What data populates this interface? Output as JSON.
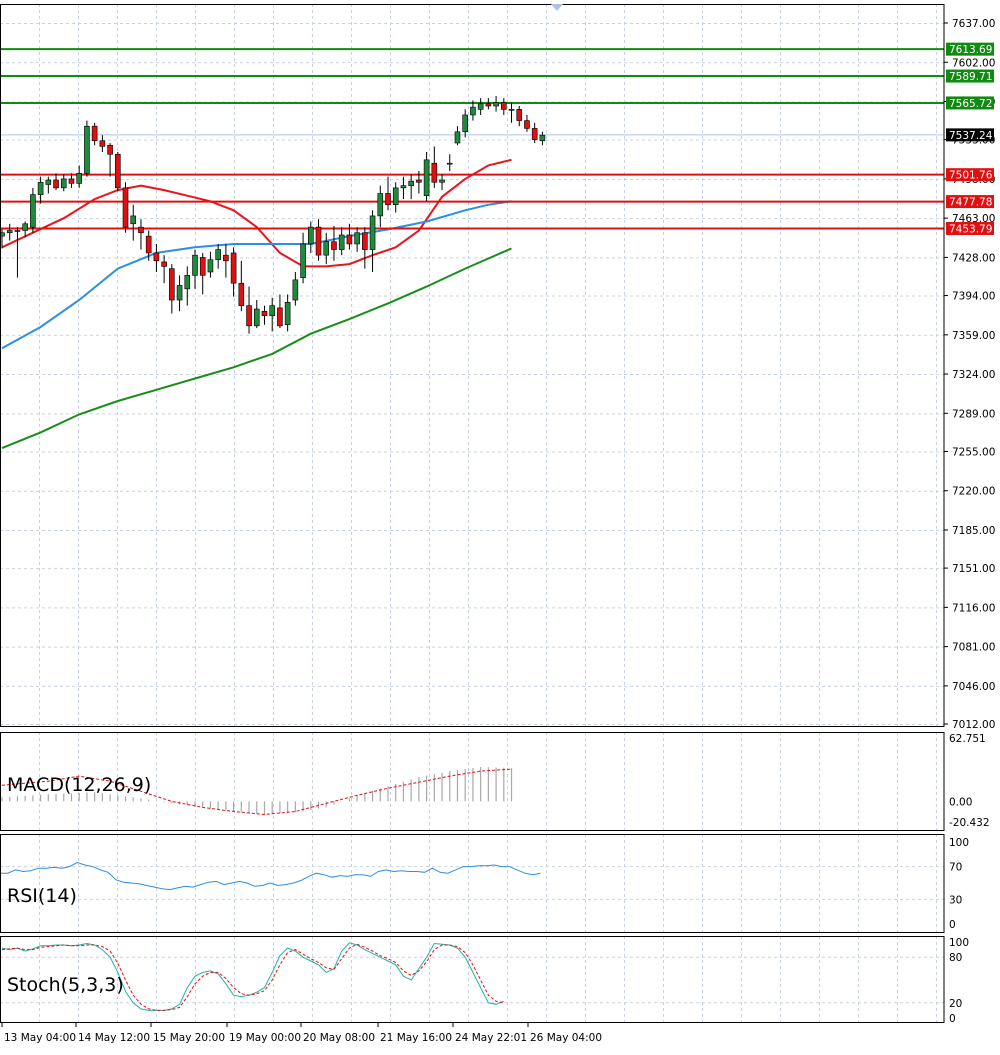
{
  "platform_colors": {
    "background": "#ffffff",
    "grid": "#c9d2e0",
    "frame": "#000000",
    "bull_candle": "#1f8a3b",
    "bear_candle": "#e01010",
    "wick": "#000000",
    "ma_fast": "#e8141c",
    "ma_mid": "#2d8ee6",
    "ma_slow": "#1a8c1a",
    "resistance": "#118a11",
    "support": "#e01010",
    "price_line": "#a9c6e8",
    "macd_histogram": "#a8a8a8",
    "macd_signal": "#e01010",
    "rsi_line": "#2d8ee6",
    "stoch_main": "#20b2aa",
    "stoch_signal": "#e01010",
    "label_text": "#ffffff",
    "current_price_bg": "#000000"
  },
  "x_axis_labels": [
    "13 May 04:00",
    "14 May 12:00",
    "15 May 20:00",
    "19 May 00:00",
    "20 May 08:00",
    "21 May 16:00",
    "24 May 22:01",
    "26 May 04:00"
  ],
  "chart_data": [
    {
      "type": "candlestick",
      "pane": "price",
      "title": "",
      "ylim": [
        7012.0,
        7637.0
      ],
      "y_tick_labels": [
        "7637.00",
        "7602.00",
        "7567.00",
        "7533.00",
        "7498.00",
        "7463.00",
        "7428.00",
        "7394.00",
        "7359.00",
        "7324.00",
        "7289.00",
        "7255.00",
        "7220.00",
        "7185.00",
        "7151.00",
        "7116.00",
        "7081.00",
        "7046.00",
        "7012.00"
      ],
      "grid": true,
      "candles": [
        {
          "o": 7447,
          "h": 7453,
          "l": 7436,
          "c": 7450
        },
        {
          "o": 7450,
          "h": 7458,
          "l": 7443,
          "c": 7452
        },
        {
          "o": 7452,
          "h": 7455,
          "l": 7410,
          "c": 7452
        },
        {
          "o": 7452,
          "h": 7460,
          "l": 7446,
          "c": 7458
        },
        {
          "o": 7455,
          "h": 7490,
          "l": 7450,
          "c": 7484
        },
        {
          "o": 7484,
          "h": 7500,
          "l": 7476,
          "c": 7495
        },
        {
          "o": 7493,
          "h": 7500,
          "l": 7485,
          "c": 7497
        },
        {
          "o": 7497,
          "h": 7503,
          "l": 7488,
          "c": 7490
        },
        {
          "o": 7490,
          "h": 7502,
          "l": 7487,
          "c": 7498
        },
        {
          "o": 7498,
          "h": 7503,
          "l": 7490,
          "c": 7494
        },
        {
          "o": 7494,
          "h": 7510,
          "l": 7490,
          "c": 7503
        },
        {
          "o": 7503,
          "h": 7550,
          "l": 7500,
          "c": 7545
        },
        {
          "o": 7545,
          "h": 7548,
          "l": 7528,
          "c": 7532
        },
        {
          "o": 7532,
          "h": 7537,
          "l": 7522,
          "c": 7527
        },
        {
          "o": 7528,
          "h": 7530,
          "l": 7500,
          "c": 7520
        },
        {
          "o": 7520,
          "h": 7522,
          "l": 7487,
          "c": 7490
        },
        {
          "o": 7490,
          "h": 7495,
          "l": 7450,
          "c": 7455
        },
        {
          "o": 7458,
          "h": 7475,
          "l": 7443,
          "c": 7465
        },
        {
          "o": 7455,
          "h": 7462,
          "l": 7435,
          "c": 7450
        },
        {
          "o": 7447,
          "h": 7452,
          "l": 7425,
          "c": 7432
        },
        {
          "o": 7432,
          "h": 7440,
          "l": 7415,
          "c": 7425
        },
        {
          "o": 7424,
          "h": 7430,
          "l": 7405,
          "c": 7420
        },
        {
          "o": 7418,
          "h": 7422,
          "l": 7378,
          "c": 7390
        },
        {
          "o": 7390,
          "h": 7412,
          "l": 7380,
          "c": 7403
        },
        {
          "o": 7400,
          "h": 7420,
          "l": 7385,
          "c": 7412
        },
        {
          "o": 7412,
          "h": 7435,
          "l": 7400,
          "c": 7430
        },
        {
          "o": 7428,
          "h": 7432,
          "l": 7395,
          "c": 7412
        },
        {
          "o": 7415,
          "h": 7433,
          "l": 7410,
          "c": 7426
        },
        {
          "o": 7426,
          "h": 7440,
          "l": 7418,
          "c": 7435
        },
        {
          "o": 7430,
          "h": 7440,
          "l": 7410,
          "c": 7425
        },
        {
          "o": 7432,
          "h": 7437,
          "l": 7393,
          "c": 7405
        },
        {
          "o": 7405,
          "h": 7425,
          "l": 7380,
          "c": 7385
        },
        {
          "o": 7385,
          "h": 7402,
          "l": 7360,
          "c": 7367
        },
        {
          "o": 7367,
          "h": 7390,
          "l": 7365,
          "c": 7382
        },
        {
          "o": 7380,
          "h": 7385,
          "l": 7368,
          "c": 7376
        },
        {
          "o": 7376,
          "h": 7392,
          "l": 7362,
          "c": 7385
        },
        {
          "o": 7383,
          "h": 7395,
          "l": 7365,
          "c": 7367
        },
        {
          "o": 7368,
          "h": 7395,
          "l": 7362,
          "c": 7388
        },
        {
          "o": 7390,
          "h": 7415,
          "l": 7385,
          "c": 7408
        },
        {
          "o": 7410,
          "h": 7450,
          "l": 7405,
          "c": 7440
        },
        {
          "o": 7440,
          "h": 7460,
          "l": 7432,
          "c": 7455
        },
        {
          "o": 7455,
          "h": 7462,
          "l": 7425,
          "c": 7430
        },
        {
          "o": 7430,
          "h": 7450,
          "l": 7422,
          "c": 7442
        },
        {
          "o": 7442,
          "h": 7456,
          "l": 7425,
          "c": 7435
        },
        {
          "o": 7435,
          "h": 7455,
          "l": 7430,
          "c": 7448
        },
        {
          "o": 7448,
          "h": 7458,
          "l": 7435,
          "c": 7440
        },
        {
          "o": 7440,
          "h": 7455,
          "l": 7433,
          "c": 7450
        },
        {
          "o": 7450,
          "h": 7455,
          "l": 7418,
          "c": 7435
        },
        {
          "o": 7435,
          "h": 7470,
          "l": 7415,
          "c": 7465
        },
        {
          "o": 7465,
          "h": 7492,
          "l": 7455,
          "c": 7485
        },
        {
          "o": 7485,
          "h": 7500,
          "l": 7470,
          "c": 7475
        },
        {
          "o": 7475,
          "h": 7495,
          "l": 7468,
          "c": 7490
        },
        {
          "o": 7490,
          "h": 7500,
          "l": 7480,
          "c": 7492
        },
        {
          "o": 7492,
          "h": 7502,
          "l": 7480,
          "c": 7496
        },
        {
          "o": 7497,
          "h": 7505,
          "l": 7485,
          "c": 7495
        },
        {
          "o": 7483,
          "h": 7522,
          "l": 7478,
          "c": 7515
        },
        {
          "o": 7512,
          "h": 7527,
          "l": 7490,
          "c": 7495
        },
        {
          "o": 7495,
          "h": 7502,
          "l": 7488,
          "c": 7497
        },
        {
          "o": 7512,
          "h": 7520,
          "l": 7505,
          "c": 7512
        },
        {
          "o": 7530,
          "h": 7545,
          "l": 7528,
          "c": 7540
        },
        {
          "o": 7540,
          "h": 7560,
          "l": 7535,
          "c": 7555
        },
        {
          "o": 7555,
          "h": 7568,
          "l": 7550,
          "c": 7562
        },
        {
          "o": 7560,
          "h": 7570,
          "l": 7555,
          "c": 7565
        },
        {
          "o": 7565,
          "h": 7570,
          "l": 7560,
          "c": 7563
        },
        {
          "o": 7563,
          "h": 7572,
          "l": 7558,
          "c": 7566
        },
        {
          "o": 7566,
          "h": 7570,
          "l": 7555,
          "c": 7560
        },
        {
          "o": 7560,
          "h": 7566,
          "l": 7548,
          "c": 7560
        },
        {
          "o": 7560,
          "h": 7563,
          "l": 7545,
          "c": 7550
        },
        {
          "o": 7550,
          "h": 7555,
          "l": 7540,
          "c": 7543
        },
        {
          "o": 7543,
          "h": 7548,
          "l": 7530,
          "c": 7533
        },
        {
          "o": 7532,
          "h": 7540,
          "l": 7528,
          "c": 7537
        }
      ],
      "moving_averages": [
        {
          "color_key": "ma_fast",
          "points": [
            [
              0,
              7437
            ],
            [
              4,
              7450
            ],
            [
              8,
              7463
            ],
            [
              12,
              7480
            ],
            [
              15,
              7488
            ],
            [
              18,
              7492
            ],
            [
              21,
              7488
            ],
            [
              24,
              7483
            ],
            [
              27,
              7478
            ],
            [
              30,
              7470
            ],
            [
              33,
              7455
            ],
            [
              36,
              7432
            ],
            [
              39,
              7420
            ],
            [
              42,
              7420
            ],
            [
              45,
              7422
            ],
            [
              48,
              7430
            ],
            [
              51,
              7437
            ],
            [
              54,
              7452
            ],
            [
              57,
              7482
            ],
            [
              60,
              7498
            ],
            [
              63,
              7510
            ],
            [
              66,
              7515
            ]
          ]
        },
        {
          "color_key": "ma_mid",
          "points": [
            [
              0,
              7347
            ],
            [
              5,
              7366
            ],
            [
              10,
              7390
            ],
            [
              15,
              7418
            ],
            [
              20,
              7432
            ],
            [
              25,
              7437
            ],
            [
              30,
              7440
            ],
            [
              35,
              7440
            ],
            [
              40,
              7440
            ],
            [
              45,
              7447
            ],
            [
              50,
              7453
            ],
            [
              55,
              7460
            ],
            [
              60,
              7470
            ],
            [
              63,
              7475
            ],
            [
              66,
              7478
            ]
          ]
        },
        {
          "color_key": "ma_slow",
          "points": [
            [
              0,
              7258
            ],
            [
              5,
              7272
            ],
            [
              10,
              7288
            ],
            [
              15,
              7300
            ],
            [
              20,
              7310
            ],
            [
              25,
              7320
            ],
            [
              30,
              7330
            ],
            [
              35,
              7342
            ],
            [
              40,
              7360
            ],
            [
              45,
              7373
            ],
            [
              50,
              7387
            ],
            [
              55,
              7402
            ],
            [
              60,
              7418
            ],
            [
              63,
              7427
            ],
            [
              66,
              7436
            ]
          ]
        }
      ],
      "horizontal_levels": [
        {
          "value": 7613.69,
          "label": "7613.69",
          "kind": "resistance"
        },
        {
          "value": 7589.71,
          "label": "7589.71",
          "kind": "resistance"
        },
        {
          "value": 7565.72,
          "label": "7565.72",
          "kind": "resistance"
        },
        {
          "value": 7501.76,
          "label": "7501.76",
          "kind": "support"
        },
        {
          "value": 7477.78,
          "label": "7477.78",
          "kind": "support"
        },
        {
          "value": 7453.79,
          "label": "7453.79",
          "kind": "support"
        }
      ],
      "current_price": {
        "value": 7537.24,
        "label": "7537.24"
      }
    },
    {
      "type": "bar",
      "pane": "macd",
      "title": "MACD(12,26,9)",
      "ylim": [
        -20.432,
        62.751
      ],
      "y_tick_labels": [
        "62.751",
        "0.00",
        "-20.432"
      ],
      "histogram_points": [
        [
          0,
          4
        ],
        [
          6,
          7
        ],
        [
          12,
          9
        ],
        [
          18,
          3
        ],
        [
          22,
          -2
        ],
        [
          26,
          -6
        ],
        [
          30,
          -10
        ],
        [
          34,
          -13
        ],
        [
          38,
          -11
        ],
        [
          42,
          -6
        ],
        [
          46,
          6
        ],
        [
          50,
          15
        ],
        [
          54,
          24
        ],
        [
          58,
          30
        ],
        [
          62,
          34
        ],
        [
          66,
          33
        ]
      ],
      "signal_points": [
        [
          0,
          16
        ],
        [
          6,
          20
        ],
        [
          10,
          25
        ],
        [
          14,
          20
        ],
        [
          18,
          10
        ],
        [
          22,
          0
        ],
        [
          26,
          -6
        ],
        [
          30,
          -10
        ],
        [
          34,
          -13
        ],
        [
          38,
          -10
        ],
        [
          42,
          -2
        ],
        [
          46,
          6
        ],
        [
          50,
          13
        ],
        [
          54,
          19
        ],
        [
          58,
          25
        ],
        [
          62,
          30
        ],
        [
          66,
          32
        ]
      ]
    },
    {
      "type": "line",
      "pane": "rsi",
      "title": "RSI(14)",
      "ylim": [
        0,
        100
      ],
      "y_tick_labels": [
        "100",
        "70",
        "30",
        "0"
      ],
      "values": [
        62,
        62,
        66,
        64,
        65,
        68,
        68,
        69,
        68,
        70,
        75,
        72,
        70,
        66,
        63,
        54,
        51,
        50,
        49,
        47,
        45,
        43,
        42,
        44,
        46,
        45,
        48,
        51,
        52,
        48,
        50,
        52,
        50,
        46,
        47,
        50,
        47,
        48,
        50,
        53,
        58,
        62,
        60,
        57,
        59,
        58,
        60,
        60,
        58,
        64,
        66,
        64,
        65,
        64,
        64,
        63,
        68,
        63,
        62,
        66,
        70,
        70,
        71,
        71,
        72,
        70,
        70,
        66,
        62,
        60,
        62
      ]
    },
    {
      "type": "line",
      "pane": "stochastic",
      "title": "Stoch(5,3,3)",
      "ylim": [
        0,
        100
      ],
      "y_tick_labels": [
        "100",
        "80",
        "20",
        "0"
      ],
      "main": [
        92,
        90,
        92,
        88,
        91,
        95,
        95,
        96,
        96,
        95,
        96,
        98,
        96,
        90,
        80,
        60,
        35,
        20,
        12,
        10,
        10,
        10,
        12,
        18,
        40,
        55,
        60,
        62,
        58,
        45,
        30,
        28,
        30,
        34,
        40,
        60,
        82,
        92,
        88,
        80,
        75,
        70,
        60,
        65,
        88,
        99,
        96,
        90,
        85,
        80,
        75,
        70,
        55,
        50,
        65,
        80,
        98,
        97,
        96,
        92,
        80,
        60,
        40,
        20,
        18,
        22
      ],
      "signal": [
        90,
        91,
        92,
        90,
        90,
        93,
        94,
        95,
        96,
        95,
        95,
        96,
        96,
        94,
        88,
        72,
        50,
        30,
        18,
        12,
        10,
        10,
        11,
        14,
        28,
        45,
        55,
        60,
        60,
        52,
        40,
        32,
        30,
        32,
        36,
        50,
        70,
        86,
        90,
        84,
        78,
        73,
        66,
        64,
        78,
        92,
        97,
        93,
        88,
        82,
        78,
        73,
        62,
        56,
        62,
        74,
        90,
        96,
        96,
        94,
        86,
        70,
        50,
        30,
        22,
        20
      ]
    }
  ]
}
